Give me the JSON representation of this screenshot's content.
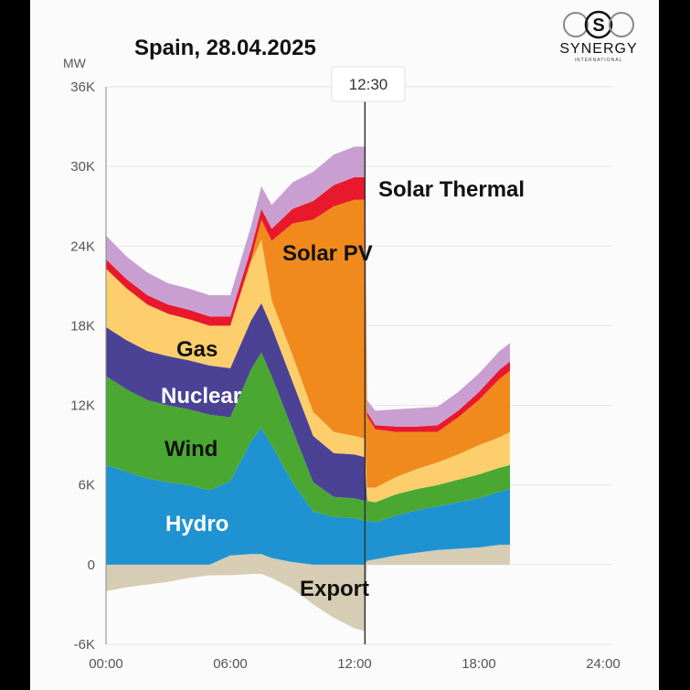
{
  "logo": {
    "name": "SYNERGY",
    "sub": "INTERNATIONAL"
  },
  "chart_data": {
    "type": "area",
    "stacked": true,
    "title": "Spain, 28.04.2025",
    "ylabel": "MW",
    "xlim": [
      0,
      24
    ],
    "ylim": [
      -6000,
      36000
    ],
    "x_ticks": [
      "00:00",
      "06:00",
      "12:00",
      "18:00",
      "24:00"
    ],
    "y_ticks": [
      "-6K",
      "0",
      "6K",
      "12K",
      "18K",
      "24K",
      "30K",
      "36K"
    ],
    "grid": true,
    "marker": {
      "x": 12.5,
      "label": "12:30"
    },
    "x": [
      0,
      1,
      2,
      3,
      4,
      5,
      6,
      7,
      7.5,
      8,
      9,
      10,
      11,
      12,
      12.5,
      12.6,
      13,
      14,
      15,
      16,
      17,
      18,
      19,
      19.5
    ],
    "colors": {
      "export": "#d6cdb4",
      "hydro": "#1f93d2",
      "wind": "#4aa832",
      "nuclear": "#4b4296",
      "gas": "#fccf6c",
      "solar_pv": "#f18a1d",
      "solar_thermal": "#e8192c",
      "top": "#c99fd2"
    },
    "series": [
      {
        "name": "Export",
        "key": "export",
        "values": [
          -2000,
          -1700,
          -1500,
          -1300,
          -1000,
          -800,
          -800,
          -700,
          -700,
          -1000,
          -1800,
          -3000,
          -4000,
          -4800,
          -5000,
          0,
          0,
          0,
          0,
          0,
          0,
          0,
          0,
          0
        ]
      },
      {
        "key": "import",
        "values": [
          0,
          0,
          0,
          0,
          0,
          0,
          700,
          800,
          800,
          500,
          200,
          0,
          0,
          0,
          0,
          300,
          400,
          700,
          900,
          1100,
          1200,
          1300,
          1500,
          1500
        ]
      },
      {
        "name": "Hydro",
        "key": "hydro",
        "values": [
          7500,
          7000,
          6500,
          6200,
          6000,
          5600,
          5600,
          8500,
          9500,
          8500,
          6000,
          4000,
          3600,
          3500,
          3300,
          3000,
          2800,
          3000,
          3200,
          3300,
          3500,
          3700,
          4000,
          4200
        ]
      },
      {
        "name": "Wind",
        "key": "wind",
        "values": [
          6700,
          6200,
          5900,
          5800,
          5700,
          5700,
          4800,
          5400,
          5700,
          5200,
          4000,
          2200,
          1500,
          1500,
          1500,
          1500,
          1500,
          1600,
          1600,
          1600,
          1700,
          1800,
          1800,
          1800
        ]
      },
      {
        "name": "Nuclear",
        "key": "nuclear",
        "values": [
          3700,
          3700,
          3700,
          3700,
          3700,
          3700,
          3700,
          3700,
          3700,
          3700,
          3600,
          3500,
          3300,
          3300,
          3300,
          0,
          0,
          0,
          0,
          0,
          0,
          0,
          0,
          0
        ]
      },
      {
        "name": "Gas",
        "key": "gas",
        "values": [
          4400,
          3900,
          3500,
          3200,
          3100,
          3000,
          3200,
          4400,
          4800,
          2000,
          2000,
          1800,
          1600,
          1400,
          1400,
          1000,
          1100,
          1300,
          1500,
          1700,
          1900,
          2200,
          2300,
          2500
        ]
      },
      {
        "name": "Solar PV",
        "key": "solar_pv",
        "values": [
          0,
          0,
          0,
          0,
          0,
          0,
          0,
          200,
          1500,
          4500,
          9900,
          14500,
          17000,
          17800,
          18000,
          5400,
          4400,
          3400,
          2800,
          2300,
          2800,
          3400,
          4400,
          4600
        ]
      },
      {
        "name": "Solar Thermal",
        "key": "solar_thermal",
        "values": [
          700,
          700,
          700,
          700,
          700,
          700,
          700,
          800,
          800,
          900,
          1100,
          1400,
          1600,
          1700,
          1700,
          300,
          300,
          400,
          400,
          500,
          500,
          600,
          700,
          700
        ]
      },
      {
        "key": "top",
        "values": [
          1800,
          1700,
          1700,
          1600,
          1600,
          1600,
          1600,
          1700,
          1700,
          1800,
          2000,
          2200,
          2300,
          2300,
          2300,
          900,
          1100,
          1300,
          1400,
          1400,
          1400,
          1400,
          1400,
          1400
        ]
      }
    ]
  }
}
